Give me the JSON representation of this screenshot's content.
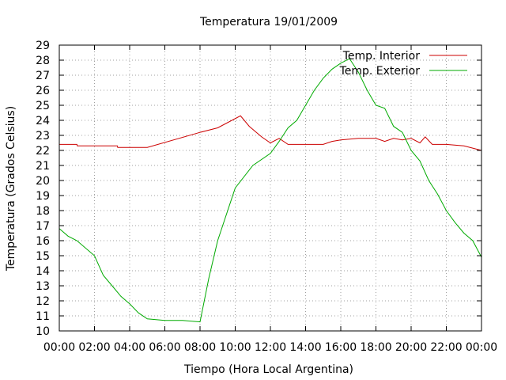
{
  "chart_data": {
    "type": "line",
    "title": "Temperatura 19/01/2009",
    "xlabel": "Tiempo (Hora Local Argentina)",
    "ylabel": "Temperatura (Grados Celsius)",
    "xlim": [
      0,
      24
    ],
    "ylim": [
      10,
      29
    ],
    "grid": true,
    "legend_position": "top-right",
    "x_ticks": [
      0,
      2,
      4,
      6,
      8,
      10,
      12,
      14,
      16,
      18,
      20,
      22,
      24
    ],
    "x_tick_labels": [
      "00:00",
      "02:00",
      "04:00",
      "06:00",
      "08:00",
      "10:00",
      "12:00",
      "14:00",
      "16:00",
      "18:00",
      "20:00",
      "22:00",
      "00:00"
    ],
    "y_ticks": [
      10,
      11,
      12,
      13,
      14,
      15,
      16,
      17,
      18,
      19,
      20,
      21,
      22,
      23,
      24,
      25,
      26,
      27,
      28,
      29
    ],
    "y_tick_labels": [
      "10",
      "11",
      "12",
      "13",
      "14",
      "15",
      "16",
      "17",
      "18",
      "19",
      "20",
      "21",
      "22",
      "23",
      "24",
      "25",
      "26",
      "27",
      "28",
      "29"
    ],
    "series": [
      {
        "name": "Temp. Interior",
        "color": "#cc0000",
        "x": [
          0,
          1,
          1.02,
          3.3,
          3.32,
          5,
          8,
          9,
          10.3,
          10.8,
          11.5,
          12,
          12.5,
          13,
          14,
          15,
          15.5,
          16,
          17,
          18,
          18.5,
          19,
          19.5,
          20,
          20.5,
          20.8,
          21.2,
          22,
          23,
          24
        ],
        "y": [
          22.4,
          22.4,
          22.3,
          22.3,
          22.2,
          22.2,
          23.2,
          23.5,
          24.3,
          23.6,
          22.9,
          22.5,
          22.8,
          22.4,
          22.4,
          22.4,
          22.6,
          22.7,
          22.8,
          22.8,
          22.6,
          22.8,
          22.7,
          22.8,
          22.5,
          22.9,
          22.4,
          22.4,
          22.3,
          22.0
        ]
      },
      {
        "name": "Temp. Exterior",
        "color": "#00aa00",
        "x": [
          0,
          0.5,
          1,
          2,
          2.5,
          3,
          3.5,
          4,
          4.5,
          5,
          6,
          7,
          8,
          8.5,
          9,
          10,
          11,
          12,
          12.5,
          13,
          13.5,
          14,
          14.5,
          15,
          15.5,
          16,
          16.5,
          17,
          17.5,
          18,
          18.5,
          19,
          19.5,
          20,
          20.5,
          21,
          21.5,
          22,
          22.5,
          23,
          23.5,
          24
        ],
        "y": [
          16.8,
          16.3,
          16.0,
          15.0,
          13.7,
          13.0,
          12.3,
          11.8,
          11.2,
          10.8,
          10.7,
          10.7,
          10.6,
          13.5,
          16.0,
          19.5,
          21.0,
          21.8,
          22.6,
          23.5,
          24.0,
          25.0,
          26.0,
          26.8,
          27.4,
          27.8,
          28.1,
          27.2,
          26.0,
          25.0,
          24.8,
          23.6,
          23.2,
          22.0,
          21.3,
          20.0,
          19.1,
          18.0,
          17.2,
          16.5,
          16.0,
          14.9
        ]
      }
    ]
  }
}
